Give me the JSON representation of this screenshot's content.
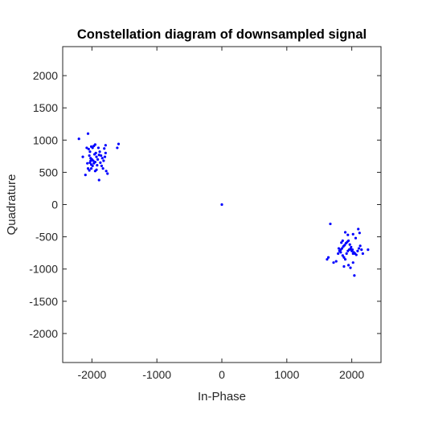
{
  "chart_data": {
    "type": "scatter",
    "title": "Constellation diagram of downsampled signal",
    "xlabel": "In-Phase",
    "ylabel": "Quadrature",
    "xlim": [
      -2450,
      2450
    ],
    "ylim": [
      -2450,
      2450
    ],
    "xticks": [
      -2000,
      -1000,
      0,
      1000,
      2000
    ],
    "yticks": [
      2000,
      1500,
      1000,
      500,
      0,
      -500,
      -1000,
      -1500,
      -2000
    ],
    "grid": false,
    "legend": "none",
    "marker_color": "#0000ff",
    "series": [
      {
        "points": [
          [
            -2200,
            1020
          ],
          [
            -2140,
            740
          ],
          [
            -2100,
            460
          ],
          [
            -2060,
            1100
          ],
          [
            -2080,
            880
          ],
          [
            -2050,
            860
          ],
          [
            -2030,
            820
          ],
          [
            -2010,
            900
          ],
          [
            -1990,
            880
          ],
          [
            -1970,
            910
          ],
          [
            -1950,
            930
          ],
          [
            -2040,
            760
          ],
          [
            -2020,
            720
          ],
          [
            -2000,
            700
          ],
          [
            -1980,
            680
          ],
          [
            -2030,
            650
          ],
          [
            -2010,
            620
          ],
          [
            -1990,
            600
          ],
          [
            -2060,
            560
          ],
          [
            -2040,
            530
          ],
          [
            -1970,
            640
          ],
          [
            -1950,
            660
          ],
          [
            -1930,
            740
          ],
          [
            -1910,
            700
          ],
          [
            -1890,
            770
          ],
          [
            -1900,
            880
          ],
          [
            -1880,
            820
          ],
          [
            -1860,
            760
          ],
          [
            -1840,
            720
          ],
          [
            -1820,
            680
          ],
          [
            -1800,
            740
          ],
          [
            -1790,
            800
          ],
          [
            -1810,
            870
          ],
          [
            -1790,
            920
          ],
          [
            -1850,
            600
          ],
          [
            -1830,
            560
          ],
          [
            -1780,
            520
          ],
          [
            -1760,
            480
          ],
          [
            -1930,
            540
          ],
          [
            -1950,
            520
          ],
          [
            -1890,
            380
          ],
          [
            -2010,
            560
          ],
          [
            -1610,
            880
          ],
          [
            -1590,
            940
          ],
          [
            -2070,
            640
          ],
          [
            -1960,
            780
          ],
          [
            -1920,
            610
          ],
          [
            -1870,
            650
          ],
          [
            -2020,
            680
          ],
          [
            -1940,
            800
          ],
          [
            0,
            0
          ],
          [
            1670,
            -300
          ],
          [
            1640,
            -820
          ],
          [
            1620,
            -850
          ],
          [
            1720,
            -900
          ],
          [
            1760,
            -880
          ],
          [
            1790,
            -760
          ],
          [
            1810,
            -720
          ],
          [
            1830,
            -700
          ],
          [
            1850,
            -680
          ],
          [
            1870,
            -650
          ],
          [
            1890,
            -630
          ],
          [
            1910,
            -600
          ],
          [
            1930,
            -580
          ],
          [
            1950,
            -560
          ],
          [
            1970,
            -620
          ],
          [
            1990,
            -660
          ],
          [
            2010,
            -700
          ],
          [
            2030,
            -740
          ],
          [
            2050,
            -760
          ],
          [
            2070,
            -780
          ],
          [
            2090,
            -720
          ],
          [
            2110,
            -680
          ],
          [
            2130,
            -640
          ],
          [
            2150,
            -700
          ],
          [
            2170,
            -760
          ],
          [
            1800,
            -680
          ],
          [
            1830,
            -740
          ],
          [
            1860,
            -790
          ],
          [
            1880,
            -820
          ],
          [
            1900,
            -850
          ],
          [
            1920,
            -760
          ],
          [
            1940,
            -720
          ],
          [
            1960,
            -700
          ],
          [
            1980,
            -690
          ],
          [
            2000,
            -720
          ],
          [
            2020,
            -760
          ],
          [
            1880,
            -960
          ],
          [
            1950,
            -940
          ],
          [
            1980,
            -980
          ],
          [
            2020,
            -900
          ],
          [
            2040,
            -1100
          ],
          [
            1900,
            -430
          ],
          [
            1940,
            -470
          ],
          [
            2020,
            -460
          ],
          [
            2060,
            -520
          ],
          [
            2100,
            -380
          ],
          [
            2120,
            -440
          ],
          [
            2250,
            -700
          ],
          [
            1840,
            -590
          ],
          [
            1860,
            -560
          ]
        ]
      }
    ]
  }
}
